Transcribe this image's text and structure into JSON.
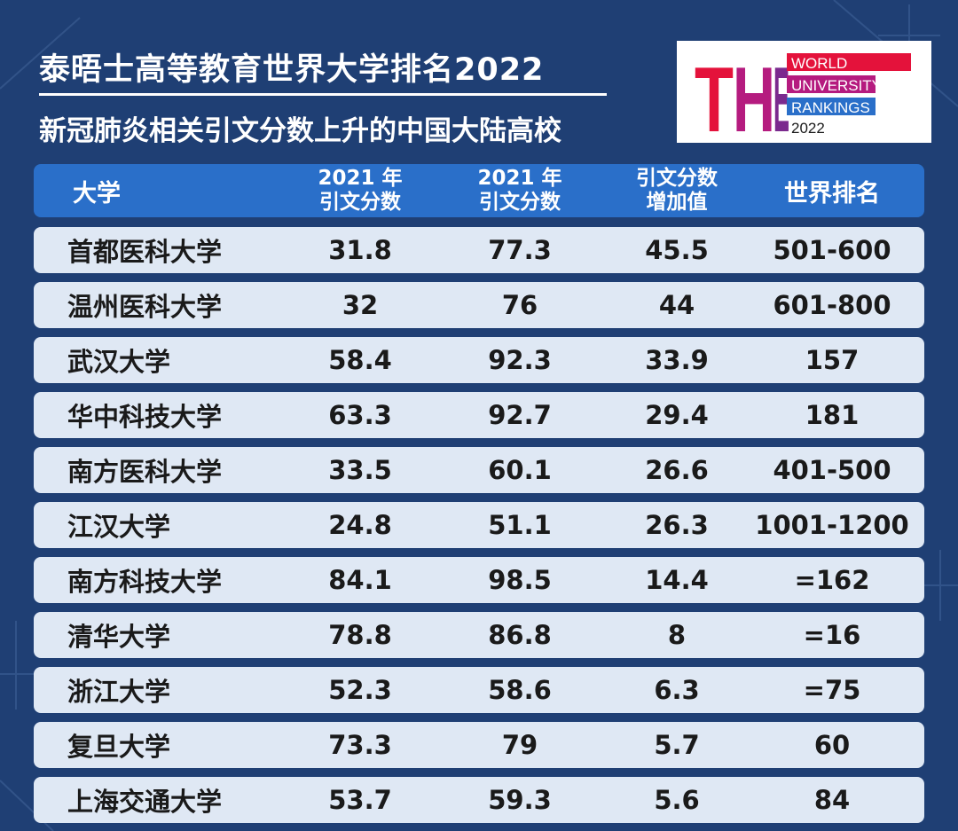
{
  "title": "泰晤士高等教育世界大学排名2022",
  "subtitle": "新冠肺炎相关引文分数上升的中国大陆高校",
  "logo": {
    "letters": "THE",
    "line1": "WORLD",
    "line2": "UNIVERSITY",
    "line3": "RANKINGS",
    "line4": "2022",
    "colors": {
      "t": "#e4123b",
      "h": "#b51b7f",
      "e": "#7b2a8e",
      "bar1": "#e4123b",
      "bar2": "#b51b7f",
      "bar3": "#2a6fc9"
    }
  },
  "table": {
    "headers": {
      "name": "大学",
      "score2021_a_line1": "2021 年",
      "score2021_a_line2": "引文分数",
      "score2021_b_line1": "2021 年",
      "score2021_b_line2": "引文分数",
      "increase_line1": "引文分数",
      "increase_line2": "增加值",
      "rank": "世界排名"
    },
    "rows": [
      {
        "name": "首都医科大学",
        "a": "31.8",
        "b": "77.3",
        "inc": "45.5",
        "rank": "501-600"
      },
      {
        "name": "温州医科大学",
        "a": "32",
        "b": "76",
        "inc": "44",
        "rank": "601-800"
      },
      {
        "name": "武汉大学",
        "a": "58.4",
        "b": "92.3",
        "inc": "33.9",
        "rank": "157"
      },
      {
        "name": "华中科技大学",
        "a": "63.3",
        "b": "92.7",
        "inc": "29.4",
        "rank": "181"
      },
      {
        "name": "南方医科大学",
        "a": "33.5",
        "b": "60.1",
        "inc": "26.6",
        "rank": "401-500"
      },
      {
        "name": "江汉大学",
        "a": "24.8",
        "b": "51.1",
        "inc": "26.3",
        "rank": "1001-1200"
      },
      {
        "name": "南方科技大学",
        "a": "84.1",
        "b": "98.5",
        "inc": "14.4",
        "rank": "=162"
      },
      {
        "name": "清华大学",
        "a": "78.8",
        "b": "86.8",
        "inc": "8",
        "rank": "=16"
      },
      {
        "name": "浙江大学",
        "a": "52.3",
        "b": "58.6",
        "inc": "6.3",
        "rank": "=75"
      },
      {
        "name": "复旦大学",
        "a": "73.3",
        "b": "79",
        "inc": "5.7",
        "rank": "60"
      },
      {
        "name": "上海交通大学",
        "a": "53.7",
        "b": "59.3",
        "inc": "5.6",
        "rank": "84"
      }
    ]
  },
  "colors": {
    "background": "#1f3f74",
    "header_row": "#2a6fc9",
    "data_row": "#dfe8f4"
  }
}
